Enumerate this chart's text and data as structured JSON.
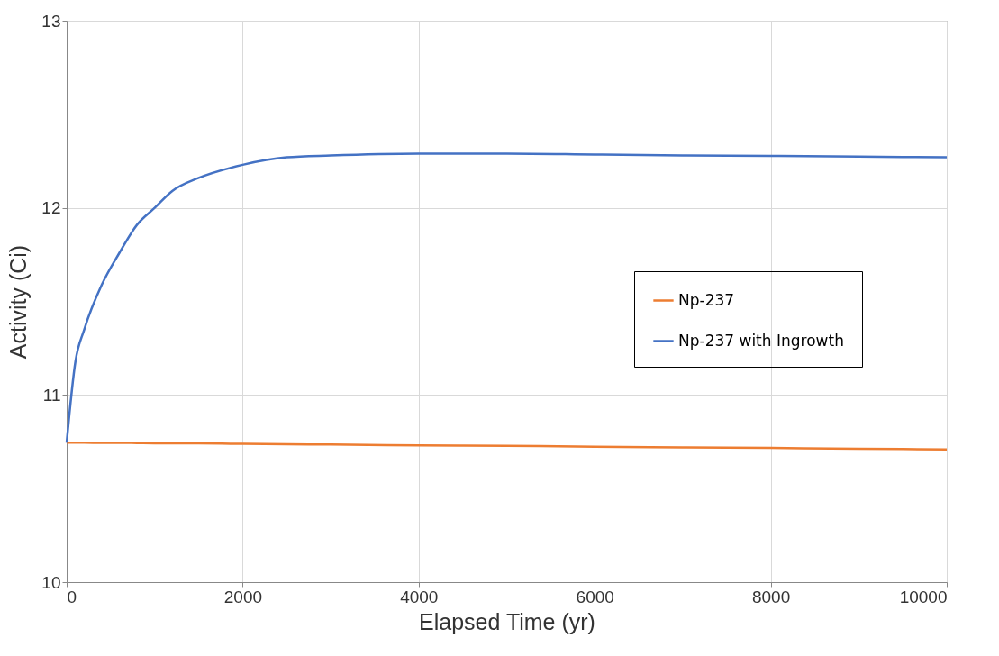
{
  "chart_data": {
    "type": "line",
    "xlabel": "Elapsed Time (yr)",
    "ylabel": "Activity (Ci)",
    "x": [
      0,
      100,
      200,
      400,
      600,
      800,
      1000,
      1200,
      1500,
      2000,
      2500,
      3000,
      4000,
      5000,
      6000,
      7000,
      8000,
      9000,
      10000
    ],
    "series": [
      {
        "name": "Np-237",
        "color": "#ed7d31",
        "values": [
          10.745,
          10.745,
          10.745,
          10.744,
          10.744,
          10.743,
          10.742,
          10.742,
          10.741,
          10.739,
          10.737,
          10.735,
          10.731,
          10.728,
          10.724,
          10.72,
          10.717,
          10.713,
          10.709
        ]
      },
      {
        "name": "Np-237 with Ingrowth",
        "color": "#4472c4",
        "values": [
          10.745,
          11.18,
          11.35,
          11.59,
          11.76,
          11.91,
          12.0,
          12.09,
          12.16,
          12.23,
          12.27,
          12.28,
          12.29,
          12.29,
          12.285,
          12.28,
          12.278,
          12.274,
          12.27
        ]
      }
    ],
    "xlim": [
      0,
      10000
    ],
    "xticks": [
      0,
      2000,
      4000,
      6000,
      8000,
      10000
    ],
    "ylim": [
      10,
      13
    ],
    "yticks": [
      10,
      11,
      12,
      13
    ],
    "grid": true,
    "legend": "right",
    "marker": "none",
    "line_style": "solid"
  }
}
